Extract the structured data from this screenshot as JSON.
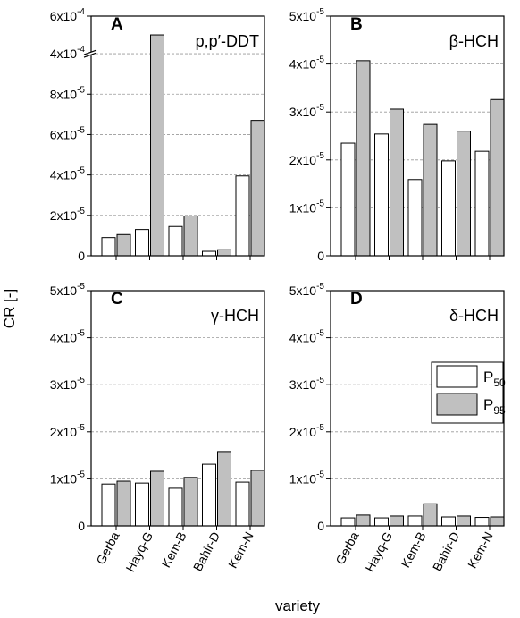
{
  "ylabel": "CR [-]",
  "xlabel": "variety",
  "chart_data": [
    {
      "type": "bar",
      "panel": "A",
      "title": "p,p′-DDT",
      "grid": true,
      "ylim": [
        0,
        0.0006
      ],
      "ybreak": [
        0.0001,
        0.0004
      ],
      "yticks": [
        0,
        {
          "value": 2e-05,
          "label": "2x10",
          "exponent": "-5"
        },
        {
          "value": 4e-05,
          "label": "4x10",
          "exponent": "-5"
        },
        {
          "value": 6e-05,
          "label": "6x10",
          "exponent": "-5"
        },
        {
          "value": 8e-05,
          "label": "8x10",
          "exponent": "-5"
        },
        {
          "value": 0.0004,
          "label": "4x10",
          "exponent": "-4"
        },
        {
          "value": 0.0006,
          "label": "6x10",
          "exponent": "-4"
        }
      ],
      "series": [
        {
          "color": "#ffffff",
          "values": [
            9e-06,
            1.3e-05,
            1.45e-05,
            2.2e-06,
            3.95e-05
          ]
        },
        {
          "color": "#c0c0c0",
          "values": [
            1.05e-05,
            0.0005,
            1.97e-05,
            3e-06,
            6.7e-05
          ]
        }
      ]
    },
    {
      "type": "bar",
      "panel": "B",
      "title": "β-HCH",
      "grid": true,
      "ylim": [
        0,
        5e-05
      ],
      "yticks": [
        0,
        {
          "value": 1e-05,
          "label": "1x10",
          "exponent": "-5"
        },
        {
          "value": 2e-05,
          "label": "2x10",
          "exponent": "-5"
        },
        {
          "value": 3e-05,
          "label": "3x10",
          "exponent": "-5"
        },
        {
          "value": 4e-05,
          "label": "4x10",
          "exponent": "-5"
        },
        {
          "value": 5e-05,
          "label": "5x10",
          "exponent": "-5"
        }
      ],
      "series": [
        {
          "color": "#ffffff",
          "values": [
            2.35e-05,
            2.54e-05,
            1.59e-05,
            1.98e-05,
            2.18e-05
          ]
        },
        {
          "color": "#c0c0c0",
          "values": [
            4.07e-05,
            3.06e-05,
            2.74e-05,
            2.6e-05,
            3.26e-05
          ]
        }
      ]
    },
    {
      "type": "bar",
      "panel": "C",
      "title": "γ-HCH",
      "grid": true,
      "categories": [
        "Gerba",
        "Hayq-G",
        "Kem-B",
        "Bahir-D",
        "Kem-N"
      ],
      "ylim": [
        0,
        5e-05
      ],
      "yticks": [
        0,
        {
          "value": 1e-05,
          "label": "1x10",
          "exponent": "-5"
        },
        {
          "value": 2e-05,
          "label": "2x10",
          "exponent": "-5"
        },
        {
          "value": 3e-05,
          "label": "3x10",
          "exponent": "-5"
        },
        {
          "value": 4e-05,
          "label": "4x10",
          "exponent": "-5"
        },
        {
          "value": 5e-05,
          "label": "5x10",
          "exponent": "-5"
        }
      ],
      "series": [
        {
          "color": "#ffffff",
          "values": [
            8.9e-06,
            9.1e-06,
            8e-06,
            1.31e-05,
            9.3e-06
          ]
        },
        {
          "color": "#c0c0c0",
          "values": [
            9.5e-06,
            1.16e-05,
            1.03e-05,
            1.58e-05,
            1.18e-05
          ]
        }
      ]
    },
    {
      "type": "bar",
      "panel": "D",
      "title": "δ-HCH",
      "grid": true,
      "legend": "right",
      "categories": [
        "Gerba",
        "Hayq-G",
        "Kem-B",
        "Bahir-D",
        "Kem-N"
      ],
      "ylim": [
        0,
        5e-05
      ],
      "yticks": [
        0,
        {
          "value": 1e-05,
          "label": "1x10",
          "exponent": "-5"
        },
        {
          "value": 2e-05,
          "label": "2x10",
          "exponent": "-5"
        },
        {
          "value": 3e-05,
          "label": "3x10",
          "exponent": "-5"
        },
        {
          "value": 4e-05,
          "label": "4x10",
          "exponent": "-5"
        },
        {
          "value": 5e-05,
          "label": "5x10",
          "exponent": "-5"
        }
      ],
      "series": [
        {
          "name": "P",
          "subscript": "50",
          "color": "#ffffff",
          "values": [
            1.7e-06,
            1.7e-06,
            2.1e-06,
            1.9e-06,
            1.8e-06
          ]
        },
        {
          "name": "P",
          "subscript": "95",
          "color": "#c0c0c0",
          "values": [
            2.3e-06,
            2.1e-06,
            4.7e-06,
            2.1e-06,
            1.9e-06
          ]
        }
      ]
    }
  ]
}
